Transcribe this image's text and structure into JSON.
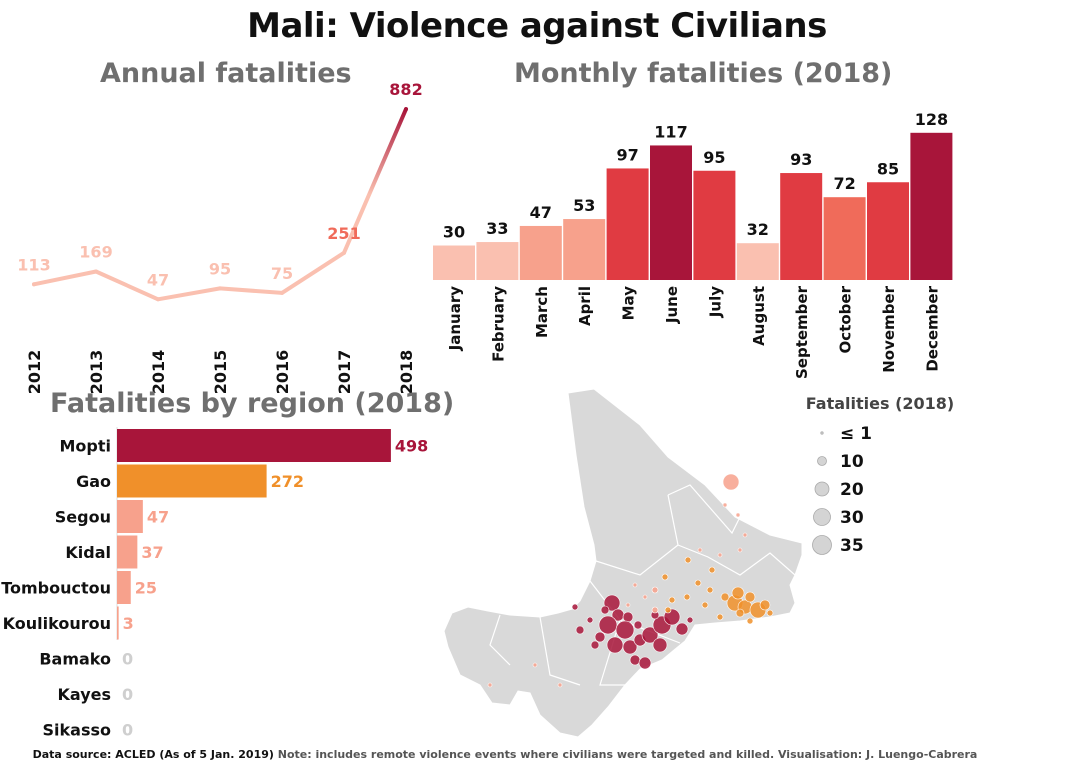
{
  "title": "Mali: Violence against Civilians",
  "footer": {
    "source": "Data source: ACLED (As of 5 Jan. 2019)",
    "note": "Note: includes remote violence events where civilians were targeted and killed. Visualisation: J. Luengo-Cabrera"
  },
  "colors": {
    "high": "#a8153a",
    "mid_high": "#e03b42",
    "mid": "#f06b5a",
    "low": "#f7a18c",
    "very_low": "#fac0b0",
    "orange": "#f0902a",
    "zero": "#cfcfcf",
    "map_land": "#d9d9d9"
  },
  "chart_data": [
    {
      "type": "line",
      "title": "Annual fatalities",
      "x": [
        "2012",
        "2013",
        "2014",
        "2015",
        "2016",
        "2017",
        "2018"
      ],
      "values": [
        113,
        169,
        47,
        95,
        75,
        251,
        882
      ]
    },
    {
      "type": "bar",
      "title": "Monthly fatalities (2018)",
      "categories": [
        "January",
        "February",
        "March",
        "April",
        "May",
        "June",
        "July",
        "August",
        "September",
        "October",
        "November",
        "December"
      ],
      "values": [
        30,
        33,
        47,
        53,
        97,
        117,
        95,
        32,
        93,
        72,
        85,
        128
      ]
    },
    {
      "type": "bar",
      "orientation": "horizontal",
      "title": "Fatalities by region (2018)",
      "categories": [
        "Mopti",
        "Gao",
        "Segou",
        "Kidal",
        "Tombouctou",
        "Koulikourou",
        "Bamako",
        "Kayes",
        "Sikasso"
      ],
      "values": [
        498,
        272,
        47,
        37,
        25,
        3,
        0,
        0,
        0
      ]
    }
  ],
  "map": {
    "legend_title": "Fatalities (2018)",
    "legend_items": [
      "≤ 1",
      "10",
      "20",
      "30",
      "35"
    ],
    "legend_values": [
      1,
      10,
      20,
      30,
      35
    ]
  }
}
